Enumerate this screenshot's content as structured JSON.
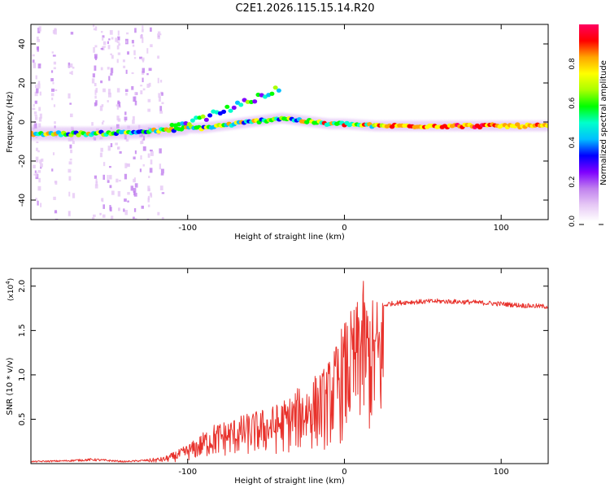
{
  "title": "C2E1.2026.115.15.14.R20",
  "chart_data": [
    {
      "type": "heatmap",
      "panel": "top",
      "xlabel": "Height of straight line (km)",
      "ylabel": "Frequency (Hz)",
      "xlim": [
        -200,
        130
      ],
      "ylim": [
        -50,
        50
      ],
      "xticks": [
        -100,
        0,
        100
      ],
      "xtick_labels": [
        "-100",
        "0",
        "100"
      ],
      "yticks": [
        40,
        20,
        0,
        -20,
        -40
      ],
      "ytick_labels": [
        "40",
        "20",
        "0",
        "-20",
        "-40"
      ],
      "colorbar": {
        "label": "Normalized spectral amplitude",
        "range": [
          0,
          1
        ],
        "ticks": [
          0.0,
          0.2,
          0.4,
          0.6,
          0.8
        ],
        "tick_labels": [
          "0.0",
          "0.2",
          "0.4",
          "0.6",
          "0.8"
        ],
        "colors": [
          "#ffffff",
          "#e6c8f5",
          "#c080ee",
          "#7f00ff",
          "#0000ff",
          "#00bfff",
          "#00ffcc",
          "#00ff00",
          "#aaff00",
          "#ffff00",
          "#ffa500",
          "#ff0000",
          "#ff0060"
        ]
      },
      "ridge": {
        "x": [
          -200,
          -160,
          -130,
          -110,
          -100,
          -90,
          -80,
          -70,
          -60,
          -50,
          -40,
          -30,
          -20,
          -10,
          0,
          20,
          40,
          60,
          80,
          100,
          130
        ],
        "y": [
          -6,
          -6,
          -5,
          -4,
          -3,
          -3,
          -2,
          -1,
          0,
          1,
          2,
          1,
          0,
          -1,
          -1,
          -2,
          -2,
          -2,
          -2,
          -2,
          -2
        ]
      },
      "upper_branch": {
        "x": [
          -110,
          -90,
          -80,
          -70,
          -60,
          -50,
          -40
        ],
        "y": [
          -3,
          2,
          5,
          8,
          11,
          14,
          18
        ]
      }
    },
    {
      "type": "line",
      "panel": "bottom",
      "xlabel": "Height of straight line (km)",
      "ylabel": "SNR (10 * v/v)",
      "multiplier": "(x10",
      "multiplier_exp": "4",
      "xlim": [
        -200,
        130
      ],
      "ylim": [
        0,
        22000
      ],
      "xticks": [
        -100,
        0,
        100
      ],
      "xtick_labels": [
        "-100",
        "0",
        "100"
      ],
      "yticks": [
        5000,
        10000,
        15000,
        20000
      ],
      "ytick_labels": [
        "0.5",
        "1.0",
        "1.5",
        "2.0"
      ],
      "series_color": "#e8312b",
      "envelope": {
        "x": [
          -200,
          -180,
          -160,
          -140,
          -125,
          -115,
          -105,
          -95,
          -85,
          -75,
          -65,
          -55,
          -45,
          -35,
          -28,
          -20,
          -12,
          -6,
          -2,
          3,
          8,
          10,
          14,
          18,
          22,
          28,
          40,
          60,
          80,
          100,
          115,
          130
        ],
        "y": [
          300,
          400,
          600,
          300,
          500,
          700,
          1500,
          2500,
          4000,
          4500,
          5000,
          5500,
          6000,
          7000,
          8000,
          9000,
          10000,
          12000,
          14000,
          15500,
          16500,
          20000,
          17500,
          17000,
          17500,
          18000,
          18200,
          18300,
          18200,
          18000,
          17800,
          17700
        ]
      }
    }
  ]
}
